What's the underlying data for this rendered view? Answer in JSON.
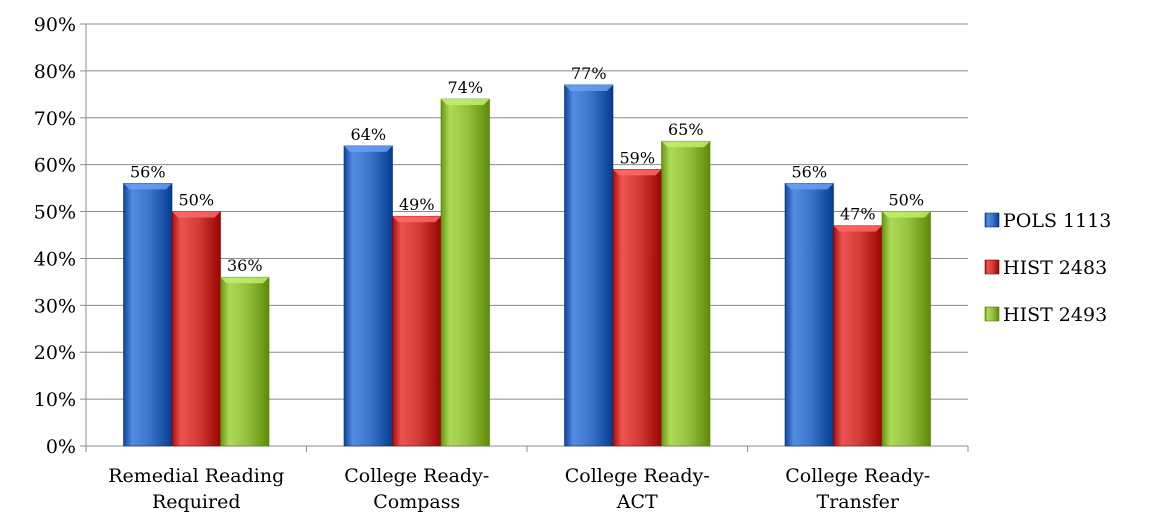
{
  "chart_data": {
    "type": "bar",
    "categories": [
      [
        "Remedial Reading",
        "Required"
      ],
      [
        "College Ready-",
        "Compass"
      ],
      [
        "College Ready-",
        "ACT"
      ],
      [
        "College Ready-",
        "Transfer"
      ]
    ],
    "series": [
      {
        "name": "POLS 1113",
        "values": [
          56,
          64,
          77,
          56
        ],
        "labels": [
          "56%",
          "64%",
          "77%",
          "56%"
        ],
        "color": "#3b73c9"
      },
      {
        "name": "HIST 2483",
        "values": [
          50,
          49,
          59,
          47
        ],
        "labels": [
          "50%",
          "49%",
          "59%",
          "47%"
        ],
        "color": "#d23b37"
      },
      {
        "name": "HIST 2493",
        "values": [
          36,
          74,
          65,
          50
        ],
        "labels": [
          "36%",
          "74%",
          "65%",
          "50%"
        ],
        "color": "#94c23f"
      }
    ],
    "y_ticks": [
      "0%",
      "10%",
      "20%",
      "30%",
      "40%",
      "50%",
      "60%",
      "70%",
      "80%",
      "90%"
    ],
    "ylim": [
      0,
      90
    ],
    "ylabel": "",
    "xlabel": "",
    "title": "",
    "grid": true,
    "legend_position": "right",
    "style": "3d-beveled"
  }
}
